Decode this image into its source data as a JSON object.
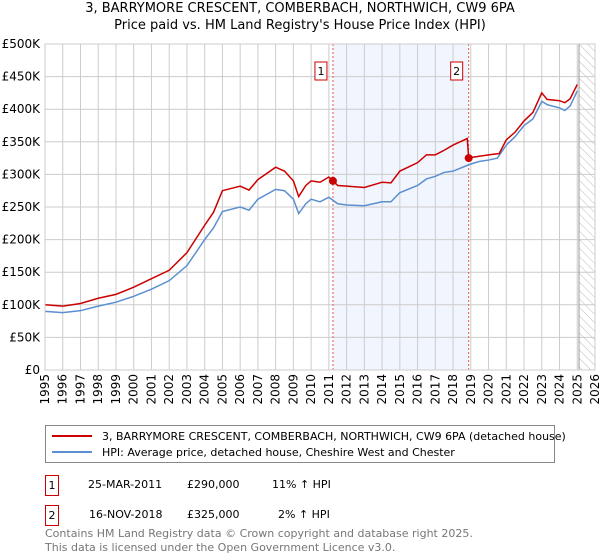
{
  "title": "3, BARRYMORE CRESCENT, COMBERBACH, NORTHWICH, CW9 6PA",
  "subtitle": "Price paid vs. HM Land Registry's House Price Index (HPI)",
  "chart_data": {
    "type": "line",
    "title": "3, BARRYMORE CRESCENT, COMBERBACH, NORTHWICH, CW9 6PA",
    "subtitle": "Price paid vs. HM Land Registry's House Price Index (HPI)",
    "xlim": [
      1995,
      2026
    ],
    "ylim": [
      0,
      500000
    ],
    "xticks": [
      "1995",
      "1996",
      "1997",
      "1998",
      "1999",
      "2000",
      "2001",
      "2002",
      "2003",
      "2004",
      "2005",
      "2006",
      "2007",
      "2008",
      "2009",
      "2010",
      "2011",
      "2012",
      "2013",
      "2014",
      "2015",
      "2016",
      "2017",
      "2018",
      "2019",
      "2020",
      "2021",
      "2022",
      "2023",
      "2024",
      "2025",
      "2026"
    ],
    "yticks": [
      "£0",
      "£50K",
      "£100K",
      "£150K",
      "£200K",
      "£250K",
      "£300K",
      "£350K",
      "£400K",
      "£450K",
      "£500K"
    ],
    "grid": true,
    "shaded_range": [
      2011.23,
      2018.88
    ],
    "forecast_hatch_from": 2025.1,
    "series": [
      {
        "name": "3, BARRYMORE CRESCENT, COMBERBACH, NORTHWICH, CW9 6PA (detached house)",
        "color": "#cc0000",
        "x": [
          1995,
          1996,
          1997,
          1998,
          1999,
          2000,
          2001,
          2002,
          2003,
          2004,
          2004.5,
          2005,
          2006,
          2006.5,
          2007,
          2008,
          2008.5,
          2009,
          2009.3,
          2009.7,
          2010,
          2010.5,
          2011,
          2011.23,
          2011.5,
          2012,
          2013,
          2014,
          2014.5,
          2015,
          2016,
          2016.5,
          2017,
          2017.5,
          2018,
          2018.8,
          2018.88,
          2019,
          2020,
          2020.6,
          2021,
          2021.5,
          2022,
          2022.5,
          2023,
          2023.3,
          2024,
          2024.3,
          2024.6,
          2025
        ],
        "y": [
          100000,
          98000,
          102000,
          110000,
          116000,
          127000,
          140000,
          153000,
          180000,
          222000,
          242000,
          275000,
          282000,
          276000,
          292000,
          311000,
          305000,
          290000,
          266000,
          283000,
          290000,
          288000,
          296000,
          290000,
          283000,
          282000,
          280000,
          288000,
          287000,
          305000,
          318000,
          330000,
          330000,
          337000,
          345000,
          355000,
          325000,
          326000,
          330000,
          332000,
          353000,
          365000,
          382000,
          395000,
          425000,
          415000,
          413000,
          410000,
          416000,
          438000
        ]
      },
      {
        "name": "HPI: Average price, detached house, Cheshire West and Chester",
        "color": "#5b8fd0",
        "x": [
          1995,
          1996,
          1997,
          1998,
          1999,
          2000,
          2001,
          2002,
          2003,
          2004,
          2004.5,
          2005,
          2006,
          2006.5,
          2007,
          2008,
          2008.5,
          2009,
          2009.3,
          2009.7,
          2010,
          2010.5,
          2011,
          2011.5,
          2012,
          2013,
          2014,
          2014.5,
          2015,
          2016,
          2016.5,
          2017,
          2017.5,
          2018,
          2018.9,
          2019,
          2019.5,
          2020,
          2020.5,
          2021,
          2021.5,
          2022,
          2022.5,
          2023,
          2023.3,
          2024,
          2024.3,
          2024.6,
          2025
        ],
        "y": [
          90000,
          88000,
          91000,
          98000,
          104000,
          113000,
          124000,
          137000,
          160000,
          200000,
          218000,
          243000,
          250000,
          245000,
          262000,
          277000,
          275000,
          262000,
          240000,
          255000,
          262000,
          258000,
          265000,
          255000,
          253000,
          252000,
          258000,
          258000,
          272000,
          283000,
          293000,
          297000,
          303000,
          305000,
          315000,
          316000,
          320000,
          322000,
          325000,
          345000,
          358000,
          375000,
          385000,
          412000,
          407000,
          402000,
          398000,
          405000,
          428000
        ]
      }
    ],
    "annotations": [
      {
        "label": "1",
        "x": 2011.23,
        "y": 290000
      },
      {
        "label": "2",
        "x": 2018.88,
        "y": 325000
      }
    ]
  },
  "legend": {
    "items": [
      {
        "label": "3, BARRYMORE CRESCENT, COMBERBACH, NORTHWICH, CW9 6PA (detached house)",
        "color": "#cc0000"
      },
      {
        "label": "HPI: Average price, detached house, Cheshire West and Chester",
        "color": "#5b8fd0"
      }
    ]
  },
  "transactions": [
    {
      "num": "1",
      "date": "25-MAR-2011",
      "price": "£290,000",
      "hpi": "11% ↑ HPI"
    },
    {
      "num": "2",
      "date": "16-NOV-2018",
      "price": "£325,000",
      "hpi": "2% ↑ HPI"
    }
  ],
  "footer": {
    "line1": "Contains HM Land Registry data © Crown copyright and database right 2025.",
    "line2": "This data is licensed under the Open Government Licence v3.0."
  }
}
